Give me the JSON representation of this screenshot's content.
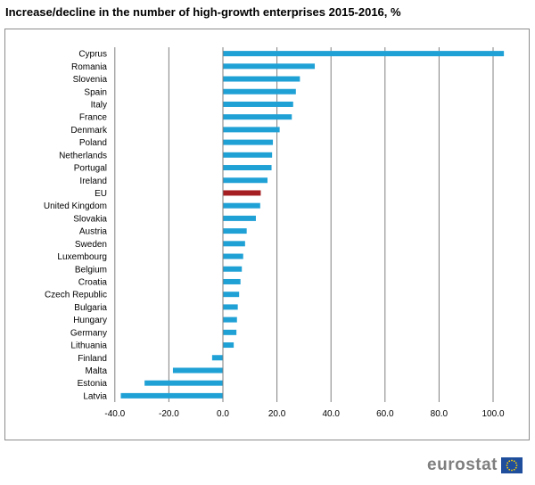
{
  "chart_data": {
    "type": "bar",
    "orientation": "horizontal",
    "title": "Increase/decline in the number of high-growth enterprises 2015-2016, %",
    "xlabel": "",
    "ylabel": "",
    "xlim": [
      -40,
      105
    ],
    "xticks": [
      -40,
      -20,
      0,
      20,
      40,
      60,
      80,
      100
    ],
    "xtick_labels": [
      "-40.0",
      "-20.0",
      "0.0",
      "20.0",
      "40.0",
      "60.0",
      "80.0",
      "100.0"
    ],
    "grid": "vertical",
    "categories": [
      "Cyprus",
      "Romania",
      "Slovenia",
      "Spain",
      "Italy",
      "France",
      "Denmark",
      "Poland",
      "Netherlands",
      "Portugal",
      "Ireland",
      "EU",
      "United Kingdom",
      "Slovakia",
      "Austria",
      "Sweden",
      "Luxembourg",
      "Belgium",
      "Croatia",
      "Czech Republic",
      "Bulgaria",
      "Hungary",
      "Germany",
      "Lithuania",
      "Finland",
      "Malta",
      "Estonia",
      "Latvia"
    ],
    "values": [
      104.0,
      34.0,
      28.5,
      27.0,
      26.0,
      25.5,
      21.0,
      18.5,
      18.2,
      18.0,
      16.5,
      14.0,
      13.8,
      12.2,
      8.8,
      8.2,
      7.5,
      7.0,
      6.5,
      6.0,
      5.5,
      5.2,
      5.0,
      4.0,
      -4.0,
      -18.5,
      -29.0,
      -37.8
    ],
    "highlight": "EU",
    "colors": {
      "bar": "#20a1d6",
      "highlight": "#a51e22",
      "grid": "#808080",
      "axis": "#808080",
      "text": "#000000"
    }
  },
  "brand": {
    "name": "eurostat",
    "colors": {
      "text": "#7f7f7f",
      "flag_bg": "#1f4e9c",
      "flag_stars": "#ffd200"
    }
  }
}
